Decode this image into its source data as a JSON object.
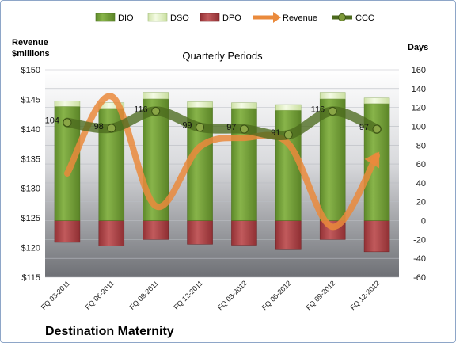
{
  "chart_data": {
    "type": "bar",
    "title": "Destination Maternity",
    "subtitle": "Quarterly Periods",
    "categories": [
      "FQ 03-2011",
      "FQ 06-2011",
      "FQ 09-2011",
      "FQ 12-2011",
      "FQ 03-2012",
      "FQ 06-2012",
      "FQ 09-2012",
      "FQ 12-2012"
    ],
    "left_axis": {
      "label_line1": "Revenue",
      "label_line2": "$millions",
      "ylim": [
        115,
        150
      ],
      "ticks": [
        "$115",
        "$120",
        "$125",
        "$130",
        "$135",
        "$140",
        "$145",
        "$150"
      ]
    },
    "right_axis": {
      "label": "Days",
      "ylim": [
        -60,
        160
      ],
      "ticks": [
        "-60",
        "-40",
        "-20",
        "0",
        "20",
        "40",
        "60",
        "80",
        "100",
        "120",
        "140",
        "160"
      ]
    },
    "series": [
      {
        "name": "DIO",
        "axis": "right",
        "kind": "stacked-bar",
        "values": [
          121,
          119,
          129,
          120,
          119,
          117,
          129,
          124
        ]
      },
      {
        "name": "DSO",
        "axis": "right",
        "kind": "stacked-bar",
        "values": [
          6,
          6,
          7,
          6,
          6,
          6,
          7,
          6
        ]
      },
      {
        "name": "DPO",
        "axis": "right",
        "kind": "stacked-bar",
        "values": [
          -23,
          -27,
          -20,
          -25,
          -26,
          -30,
          -20,
          -33
        ]
      },
      {
        "name": "Revenue",
        "axis": "left",
        "kind": "line",
        "values": [
          132.5,
          145.5,
          127.0,
          137.0,
          138.5,
          137.5,
          123.5,
          135.5
        ]
      },
      {
        "name": "CCC",
        "axis": "right",
        "kind": "line",
        "values": [
          104,
          98,
          116,
          99,
          97,
          91,
          116,
          97
        ]
      }
    ],
    "colors": {
      "DIO": "#76a43c",
      "DSO": "#eef7d9",
      "DPO": "#b04548",
      "Revenue": "#ea8a3c",
      "CCC": "#4c6a1e"
    },
    "legend_position": "top",
    "grid": true
  }
}
